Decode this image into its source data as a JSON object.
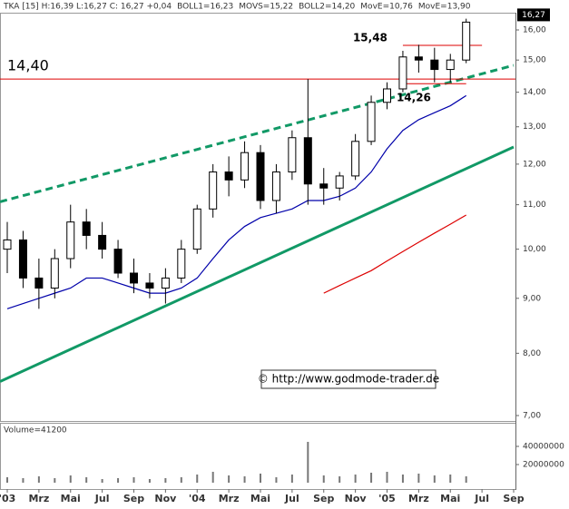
{
  "chart_data": {
    "type": "candlestick",
    "header": [
      {
        "text": "TKA [15] H:16,39 L:16,27 C: 16,27 +0,04",
        "color": "#444444"
      },
      {
        "text": "BOLL1=16,23",
        "color": "#aaaaaa"
      },
      {
        "text": "MOVS=15,22",
        "color": "#aaaaaa"
      },
      {
        "text": "BOLL2=14,20",
        "color": "#aaaaaa"
      },
      {
        "text": "MovE=10,76",
        "color": "#dd0000"
      },
      {
        "text": "MovE=13,90",
        "color": "#0000cc"
      }
    ],
    "x": [
      "2003-01",
      "2003-02",
      "2003-03",
      "2003-04",
      "2003-05",
      "2003-06",
      "2003-07",
      "2003-08",
      "2003-09",
      "2003-10",
      "2003-11",
      "2003-12",
      "2004-01",
      "2004-02",
      "2004-03",
      "2004-04",
      "2004-05",
      "2004-06",
      "2004-07",
      "2004-08",
      "2004-09",
      "2004-10",
      "2004-11",
      "2004-12",
      "2005-01",
      "2005-02",
      "2005-03",
      "2005-04",
      "2005-05",
      "2005-06"
    ],
    "open": [
      10.0,
      10.2,
      9.4,
      9.2,
      9.8,
      10.6,
      10.3,
      10.0,
      9.5,
      9.3,
      9.2,
      9.4,
      10.0,
      10.9,
      11.8,
      11.6,
      12.3,
      11.1,
      11.8,
      12.7,
      11.5,
      11.4,
      11.7,
      12.6,
      13.7,
      14.1,
      15.1,
      15.0,
      14.7,
      15.0
    ],
    "high": [
      10.6,
      10.4,
      9.8,
      10.0,
      11.0,
      10.9,
      10.6,
      10.2,
      9.8,
      9.5,
      9.6,
      10.2,
      11.0,
      12.0,
      12.2,
      12.6,
      12.5,
      12.0,
      12.9,
      14.4,
      11.9,
      11.8,
      12.8,
      13.9,
      14.3,
      15.3,
      15.5,
      15.4,
      15.2,
      16.39
    ],
    "low": [
      9.5,
      9.2,
      8.8,
      9.0,
      9.6,
      10.0,
      9.8,
      9.4,
      9.1,
      9.0,
      8.9,
      9.3,
      9.9,
      10.7,
      11.2,
      11.4,
      10.9,
      10.8,
      11.6,
      11.0,
      11.0,
      11.1,
      11.6,
      12.5,
      13.5,
      14.0,
      14.6,
      14.3,
      14.3,
      14.9
    ],
    "close": [
      10.2,
      9.4,
      9.2,
      9.8,
      10.6,
      10.3,
      10.0,
      9.5,
      9.3,
      9.2,
      9.4,
      10.0,
      10.9,
      11.8,
      11.6,
      12.3,
      11.1,
      11.8,
      12.7,
      11.5,
      11.4,
      11.7,
      12.6,
      13.7,
      14.1,
      15.1,
      15.0,
      14.7,
      15.0,
      16.27
    ],
    "last_label": "16,27",
    "moving_averages": [
      {
        "color": "#0000aa",
        "values": [
          8.8,
          8.9,
          9.0,
          9.1,
          9.2,
          9.4,
          9.4,
          9.3,
          9.2,
          9.1,
          9.1,
          9.2,
          9.4,
          9.8,
          10.2,
          10.5,
          10.7,
          10.8,
          10.9,
          11.1,
          11.1,
          11.2,
          11.4,
          11.8,
          12.4,
          12.9,
          13.2,
          13.4,
          13.6,
          13.9
        ]
      },
      {
        "color": "#dd0000",
        "values": [
          null,
          null,
          null,
          null,
          null,
          null,
          null,
          null,
          null,
          null,
          null,
          null,
          null,
          null,
          null,
          null,
          null,
          null,
          null,
          null,
          9.1,
          9.25,
          9.4,
          9.55,
          9.75,
          9.95,
          10.15,
          10.35,
          10.55,
          10.76
        ]
      }
    ],
    "trendlines": [
      {
        "x": [
          "2003-01",
          "2005-09"
        ],
        "y": [
          11.07,
          14.83
        ],
        "color": "#119966",
        "dashed": true
      },
      {
        "x": [
          "2003-01",
          "2005-09"
        ],
        "y": [
          7.53,
          12.45
        ],
        "color": "#119966",
        "dashed": false
      }
    ],
    "levels": [
      {
        "value": 14.4,
        "label": "14,40",
        "x": [
          "2003-01",
          "2005-09"
        ],
        "color": "#dd0000"
      },
      {
        "value": 15.48,
        "label": "15,48",
        "x": [
          "2005-02",
          "2005-07"
        ],
        "color": "#dd0000"
      },
      {
        "value": 14.26,
        "label": "14,26",
        "x": [
          "2005-02",
          "2005-06"
        ],
        "color": "#dd0000"
      }
    ],
    "xlim": [
      "2003-01",
      "2005-09"
    ],
    "xticks": [
      {
        "value": "2003-01",
        "label": "'03"
      },
      {
        "value": "2003-03",
        "label": "Mrz"
      },
      {
        "value": "2003-05",
        "label": "Mai"
      },
      {
        "value": "2003-07",
        "label": "Jul"
      },
      {
        "value": "2003-09",
        "label": "Sep"
      },
      {
        "value": "2003-11",
        "label": "Nov"
      },
      {
        "value": "2004-01",
        "label": "'04"
      },
      {
        "value": "2004-03",
        "label": "Mrz"
      },
      {
        "value": "2004-05",
        "label": "Mai"
      },
      {
        "value": "2004-07",
        "label": "Jul"
      },
      {
        "value": "2004-09",
        "label": "Sep"
      },
      {
        "value": "2004-11",
        "label": "Nov"
      },
      {
        "value": "2005-01",
        "label": "'05"
      },
      {
        "value": "2005-03",
        "label": "Mrz"
      },
      {
        "value": "2005-05",
        "label": "Mai"
      },
      {
        "value": "2005-07",
        "label": "Jul"
      },
      {
        "value": "2005-09",
        "label": "Sep"
      }
    ],
    "ylim": [
      7,
      16
    ],
    "log_scale": true,
    "yticks": [
      {
        "value": 7,
        "label": "7,00"
      },
      {
        "value": 8,
        "label": "8,00"
      },
      {
        "value": 9,
        "label": "9,00"
      },
      {
        "value": 10,
        "label": "10,00"
      },
      {
        "value": 11,
        "label": "11,00"
      },
      {
        "value": 12,
        "label": "12,00"
      },
      {
        "value": 13,
        "label": "13,00"
      },
      {
        "value": 14,
        "label": "14,00"
      },
      {
        "value": 15,
        "label": "15,00"
      },
      {
        "value": 16,
        "label": "16,00"
      }
    ],
    "copyright": "© http://www.godmode-trader.de",
    "volume": {
      "label": "Volume=41200",
      "color": "#777777",
      "values": [
        6000000,
        5000000,
        7000000,
        5000000,
        8000000,
        6000000,
        4000000,
        5000000,
        6000000,
        4000000,
        5000000,
        6000000,
        9000000,
        12000000,
        8000000,
        7000000,
        10000000,
        6000000,
        9000000,
        45000000,
        8000000,
        7000000,
        9000000,
        11000000,
        12000000,
        9000000,
        10000000,
        8000000,
        9000000,
        7000000
      ],
      "ylim": [
        0,
        60000000
      ],
      "yticks": [
        20000000,
        40000000
      ]
    }
  }
}
